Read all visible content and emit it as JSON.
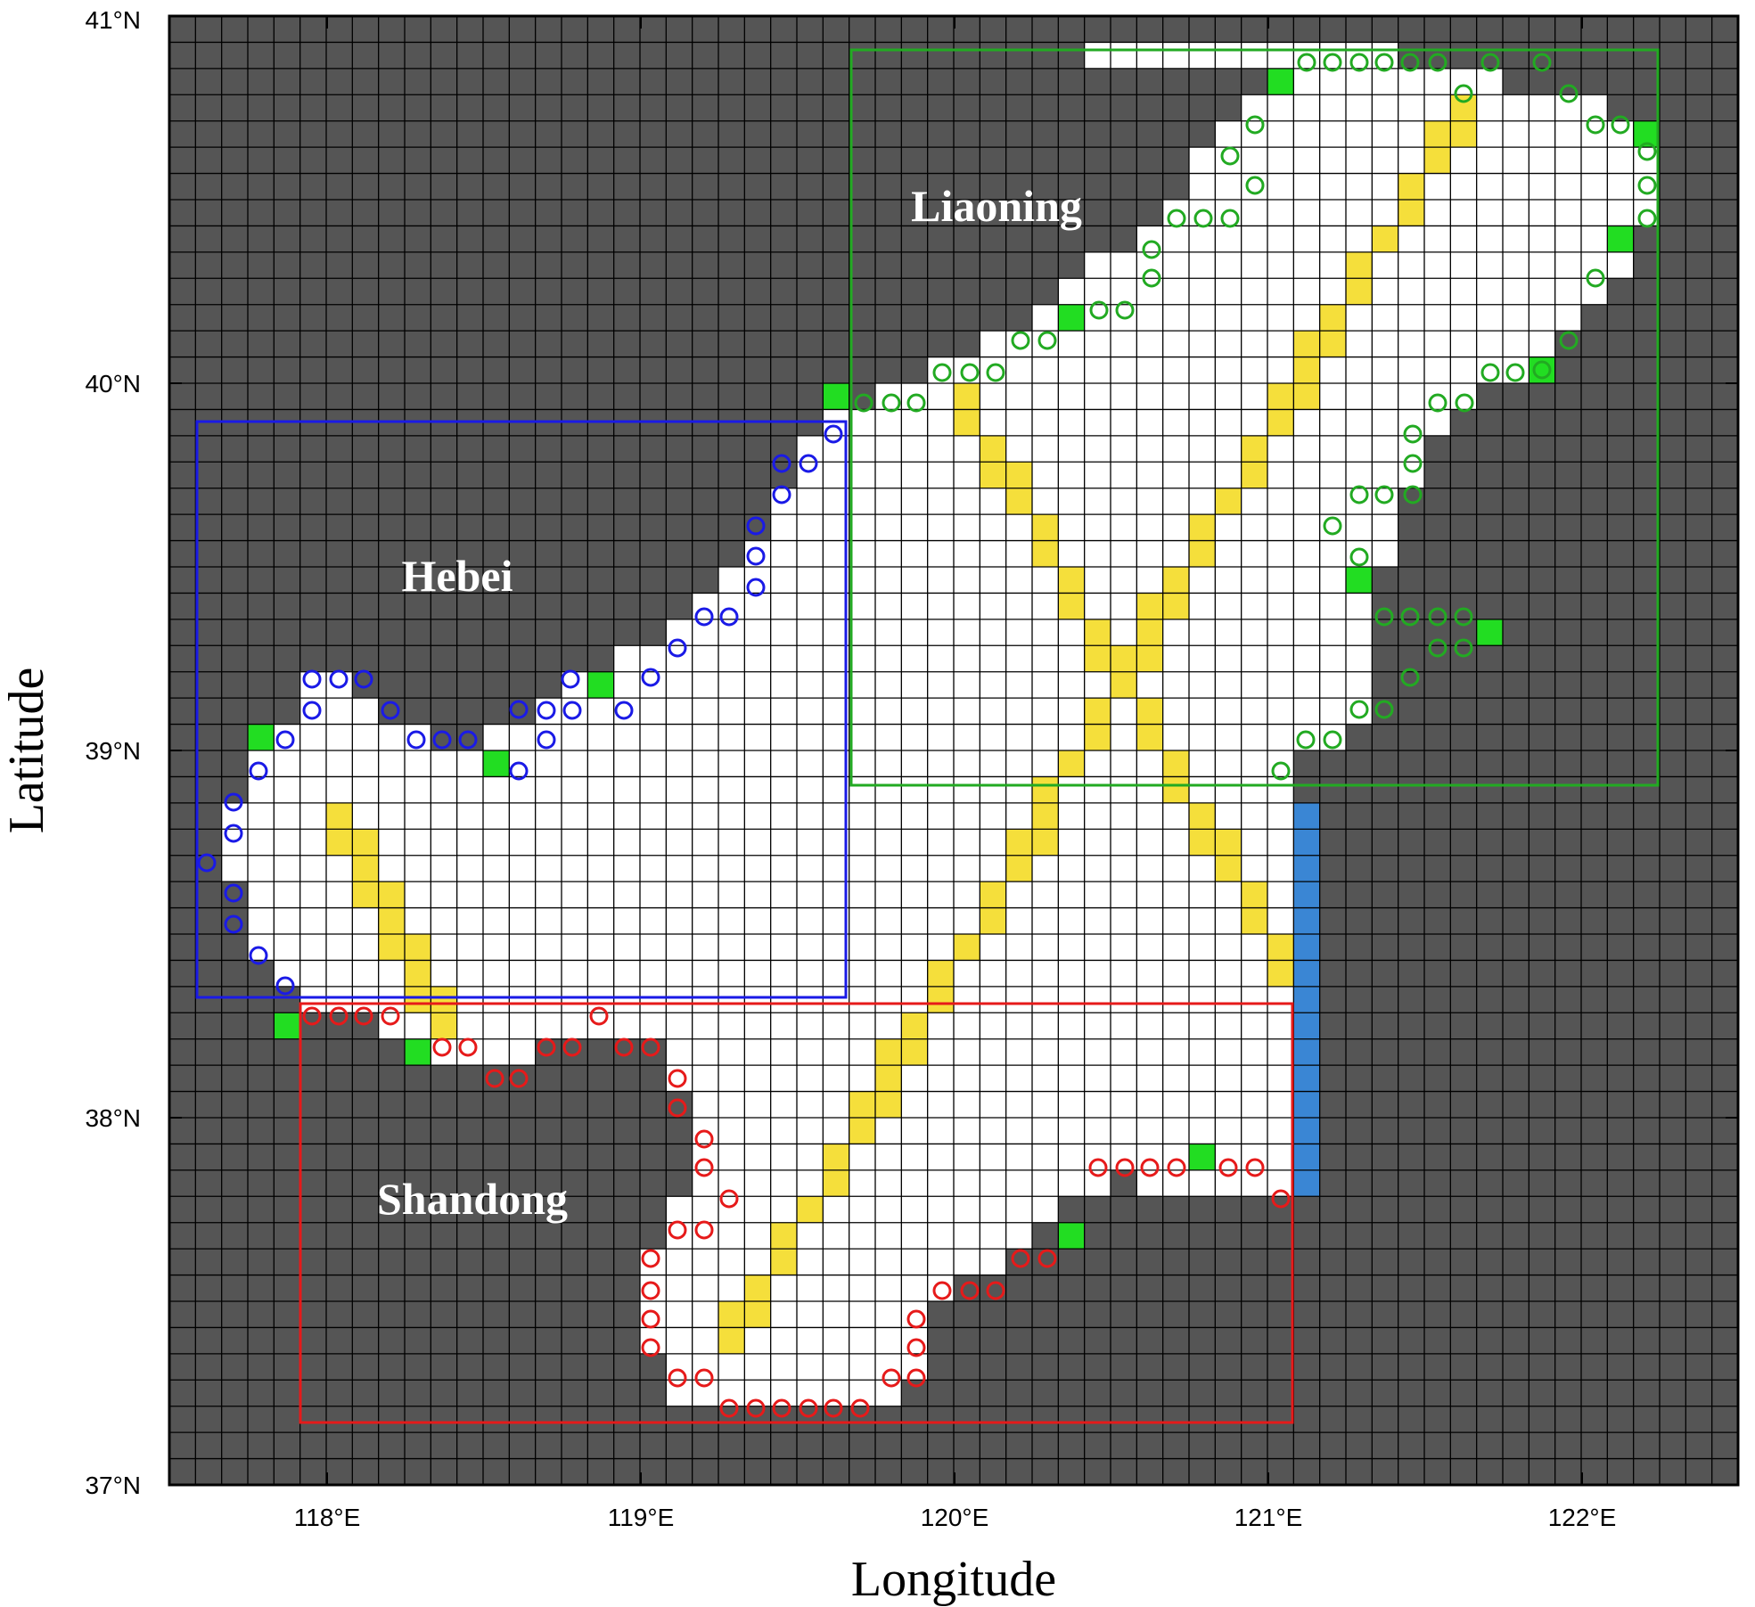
{
  "axes": {
    "xlabel": "Longitude",
    "ylabel": "Latitude",
    "xlim": [
      117.5,
      122.5
    ],
    "ylim": [
      37,
      41
    ],
    "x_ticks": [
      "118°E",
      "119°E",
      "120°E",
      "121°E",
      "122°E"
    ],
    "y_ticks": [
      "37°N",
      "38°N",
      "39°N",
      "40°N",
      "41°N"
    ]
  },
  "regions": [
    {
      "name": "Liaoning",
      "color": "#22aa22",
      "bbox_lonlat": {
        "lon": [
          119.66,
          122.23
        ],
        "lat": [
          38.92,
          40.9
        ]
      }
    },
    {
      "name": "Hebei",
      "color": "#1a1ae6",
      "bbox_lonlat": {
        "lon": [
          117.59,
          119.66
        ],
        "lat": [
          38.35,
          39.9
        ]
      }
    },
    {
      "name": "Shandong",
      "color": "#e61a1a",
      "bbox_lonlat": {
        "lon": [
          117.92,
          121.07
        ],
        "lat": [
          37.18,
          38.33
        ]
      }
    }
  ],
  "colors": {
    "land": "#555555",
    "water": "#ffffff",
    "grid_line": "#000000",
    "open_boundary": "#3a86d4",
    "river_input": "#22dd22",
    "channel": "#f5df3b"
  }
}
